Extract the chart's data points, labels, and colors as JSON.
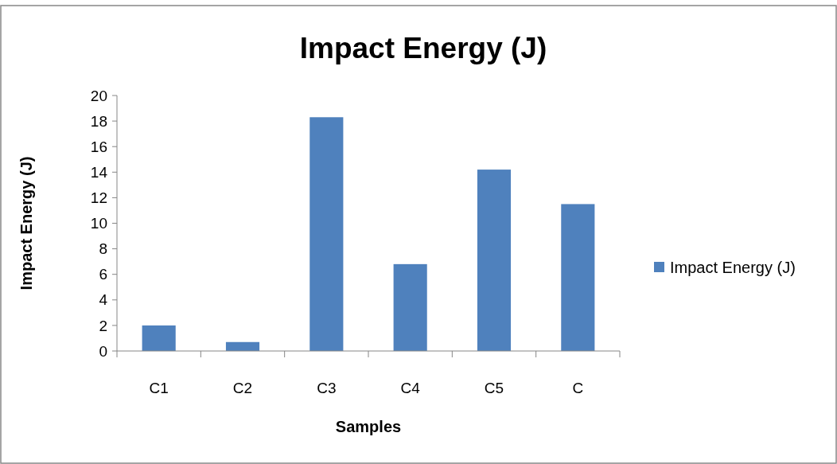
{
  "chart_data": {
    "type": "bar",
    "title": "Impact Energy (J)",
    "xlabel": "Samples",
    "ylabel": "Impact Energy (J)",
    "categories": [
      "C1",
      "C2",
      "C3",
      "C4",
      "C5",
      "C"
    ],
    "series": [
      {
        "name": "Impact Energy (J)",
        "color": "#4f81bd",
        "values": [
          2.0,
          0.7,
          18.3,
          6.8,
          14.2,
          11.5
        ]
      }
    ],
    "ylim": [
      0,
      20
    ],
    "yticks": [
      0,
      2,
      4,
      6,
      8,
      10,
      12,
      14,
      16,
      18,
      20
    ],
    "legend": "right"
  }
}
